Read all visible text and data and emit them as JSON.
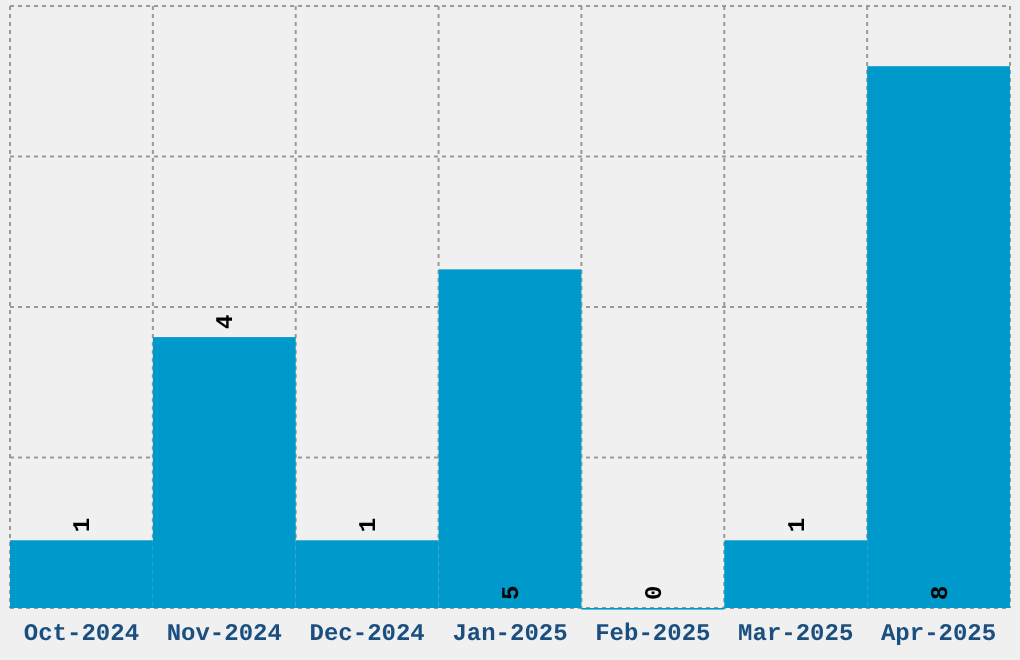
{
  "chart_data": {
    "type": "bar",
    "categories": [
      "Oct-2024",
      "Nov-2024",
      "Dec-2024",
      "Jan-2025",
      "Feb-2025",
      "Mar-2025",
      "Apr-2025"
    ],
    "values": [
      1,
      4,
      1,
      5,
      0,
      1,
      8
    ],
    "color": "#0099cc",
    "ylim": [
      0,
      8.889
    ],
    "yticks": [
      {
        "value": 0,
        "label": null
      },
      {
        "value": 2.222,
        "label": null
      },
      {
        "value": 4.444,
        "label": null
      },
      {
        "value": 6.667,
        "label": null
      },
      {
        "value": 8.889,
        "label": null
      }
    ],
    "tick_labels": "x",
    "grid": true,
    "data_labels": true
  }
}
